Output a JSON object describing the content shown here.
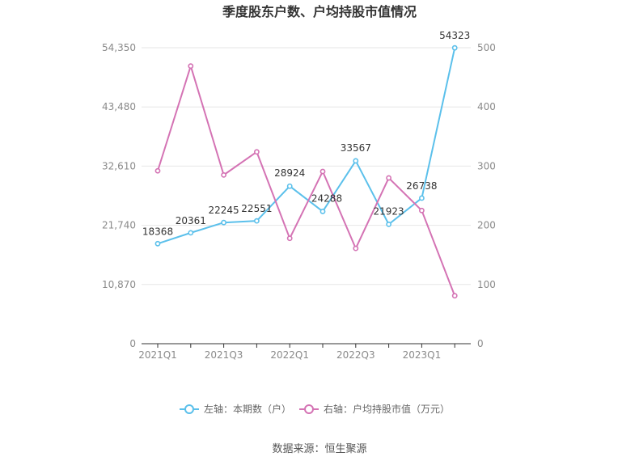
{
  "chart_data": {
    "type": "line",
    "title": "季度股东户数、户均持股市值情况",
    "categories": [
      "2021Q1",
      "2021Q2",
      "2021Q3",
      "2021Q4",
      "2022Q1",
      "2022Q2",
      "2022Q3",
      "2022Q4",
      "2023Q1",
      "2023Q2"
    ],
    "x_tick_labels": [
      "2021Q1",
      "2021Q3",
      "2022Q1",
      "2022Q3",
      "2023Q1"
    ],
    "y_left": {
      "ticks": [
        "0",
        "10,870",
        "21,740",
        "32,610",
        "43,480",
        "54,350"
      ],
      "ylim": [
        0,
        54350
      ]
    },
    "y_right": {
      "ticks": [
        "0",
        "100",
        "200",
        "300",
        "400",
        "500"
      ],
      "ylim": [
        0,
        500
      ]
    },
    "grid": true,
    "legend_position": "bottom",
    "series": [
      {
        "name": "左轴：本期数（户）",
        "axis": "left",
        "color": "#5bc0eb",
        "values": [
          18368,
          20361,
          22245,
          22551,
          28924,
          24288,
          33567,
          21923,
          26738,
          54323
        ],
        "labels": [
          "18368",
          "20361",
          "22245",
          "22551",
          "28924",
          "24288",
          "33567",
          "21923",
          "26738",
          "54323"
        ]
      },
      {
        "name": "右轴：户均持股市值（万元）",
        "axis": "right",
        "color": "#d473b4",
        "values": [
          292,
          469,
          285,
          324,
          178,
          291,
          161,
          280,
          225,
          81
        ]
      }
    ]
  },
  "source_text": "数据来源：恒生聚源"
}
